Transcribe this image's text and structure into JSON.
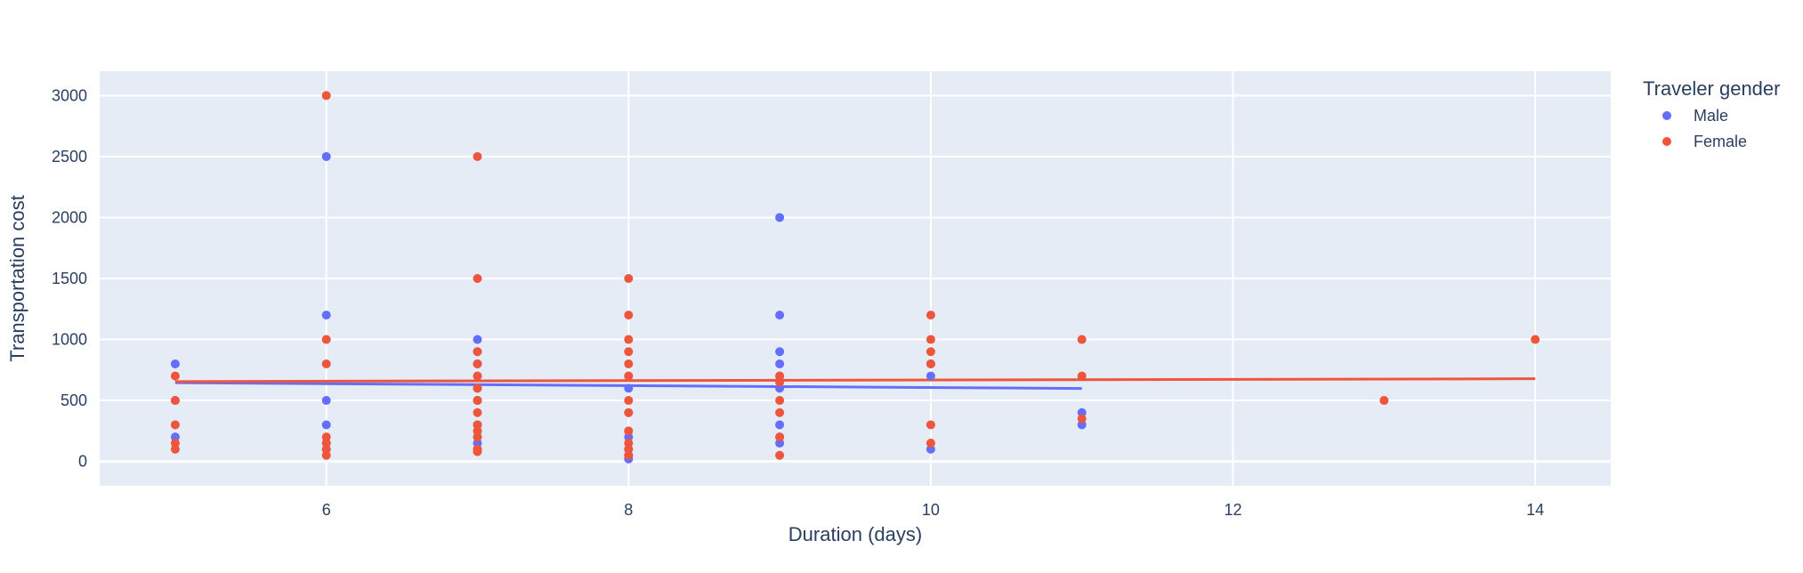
{
  "colors": {
    "plot_bg": "#e5ecf6",
    "grid": "#ffffff",
    "text": "#2a3f5f",
    "male": "#636efa",
    "female": "#ef553b"
  },
  "chart_data": {
    "type": "scatter",
    "title": "",
    "xlabel": "Duration (days)",
    "ylabel": "Transportation cost",
    "xlim": [
      4.5,
      14.5
    ],
    "ylim": [
      -200,
      3200
    ],
    "xticks": [
      6,
      8,
      10,
      12,
      14
    ],
    "yticks": [
      0,
      500,
      1000,
      1500,
      2000,
      2500,
      3000
    ],
    "grid": true,
    "legend": {
      "title": "Traveler gender",
      "placement": "top-right, outside plot"
    },
    "series": [
      {
        "name": "Male",
        "color": "#636efa",
        "points": [
          [
            5,
            800
          ],
          [
            5,
            200
          ],
          [
            5,
            500
          ],
          [
            6,
            2500
          ],
          [
            6,
            1200
          ],
          [
            6,
            500
          ],
          [
            6,
            300
          ],
          [
            6,
            150
          ],
          [
            6,
            100
          ],
          [
            7,
            1000
          ],
          [
            7,
            900
          ],
          [
            7,
            800
          ],
          [
            7,
            700
          ],
          [
            7,
            600
          ],
          [
            7,
            500
          ],
          [
            7,
            300
          ],
          [
            7,
            200
          ],
          [
            7,
            150
          ],
          [
            7,
            100
          ],
          [
            8,
            700
          ],
          [
            8,
            600
          ],
          [
            8,
            400
          ],
          [
            8,
            200
          ],
          [
            8,
            100
          ],
          [
            8,
            50
          ],
          [
            8,
            20
          ],
          [
            9,
            2000
          ],
          [
            9,
            1200
          ],
          [
            9,
            900
          ],
          [
            9,
            800
          ],
          [
            9,
            700
          ],
          [
            9,
            600
          ],
          [
            9,
            300
          ],
          [
            9,
            200
          ],
          [
            9,
            150
          ],
          [
            10,
            800
          ],
          [
            10,
            700
          ],
          [
            10,
            100
          ],
          [
            11,
            400
          ],
          [
            11,
            300
          ]
        ],
        "trendline": [
          [
            5,
            645
          ],
          [
            11,
            598
          ]
        ]
      },
      {
        "name": "Female",
        "color": "#ef553b",
        "points": [
          [
            5,
            700
          ],
          [
            5,
            500
          ],
          [
            5,
            300
          ],
          [
            5,
            150
          ],
          [
            5,
            100
          ],
          [
            6,
            3000
          ],
          [
            6,
            1000
          ],
          [
            6,
            800
          ],
          [
            6,
            200
          ],
          [
            6,
            150
          ],
          [
            6,
            100
          ],
          [
            6,
            50
          ],
          [
            7,
            2500
          ],
          [
            7,
            1500
          ],
          [
            7,
            900
          ],
          [
            7,
            800
          ],
          [
            7,
            700
          ],
          [
            7,
            600
          ],
          [
            7,
            500
          ],
          [
            7,
            400
          ],
          [
            7,
            300
          ],
          [
            7,
            250
          ],
          [
            7,
            200
          ],
          [
            7,
            100
          ],
          [
            7,
            80
          ],
          [
            8,
            1500
          ],
          [
            8,
            1200
          ],
          [
            8,
            1000
          ],
          [
            8,
            900
          ],
          [
            8,
            800
          ],
          [
            8,
            700
          ],
          [
            8,
            500
          ],
          [
            8,
            400
          ],
          [
            8,
            250
          ],
          [
            8,
            150
          ],
          [
            8,
            100
          ],
          [
            8,
            50
          ],
          [
            9,
            700
          ],
          [
            9,
            650
          ],
          [
            9,
            500
          ],
          [
            9,
            400
          ],
          [
            9,
            200
          ],
          [
            9,
            50
          ],
          [
            10,
            1200
          ],
          [
            10,
            1000
          ],
          [
            10,
            900
          ],
          [
            10,
            800
          ],
          [
            10,
            300
          ],
          [
            10,
            150
          ],
          [
            11,
            1000
          ],
          [
            11,
            700
          ],
          [
            11,
            350
          ],
          [
            13,
            500
          ],
          [
            14,
            1000
          ]
        ],
        "trendline": [
          [
            5,
            655
          ],
          [
            14,
            678
          ]
        ]
      }
    ]
  }
}
